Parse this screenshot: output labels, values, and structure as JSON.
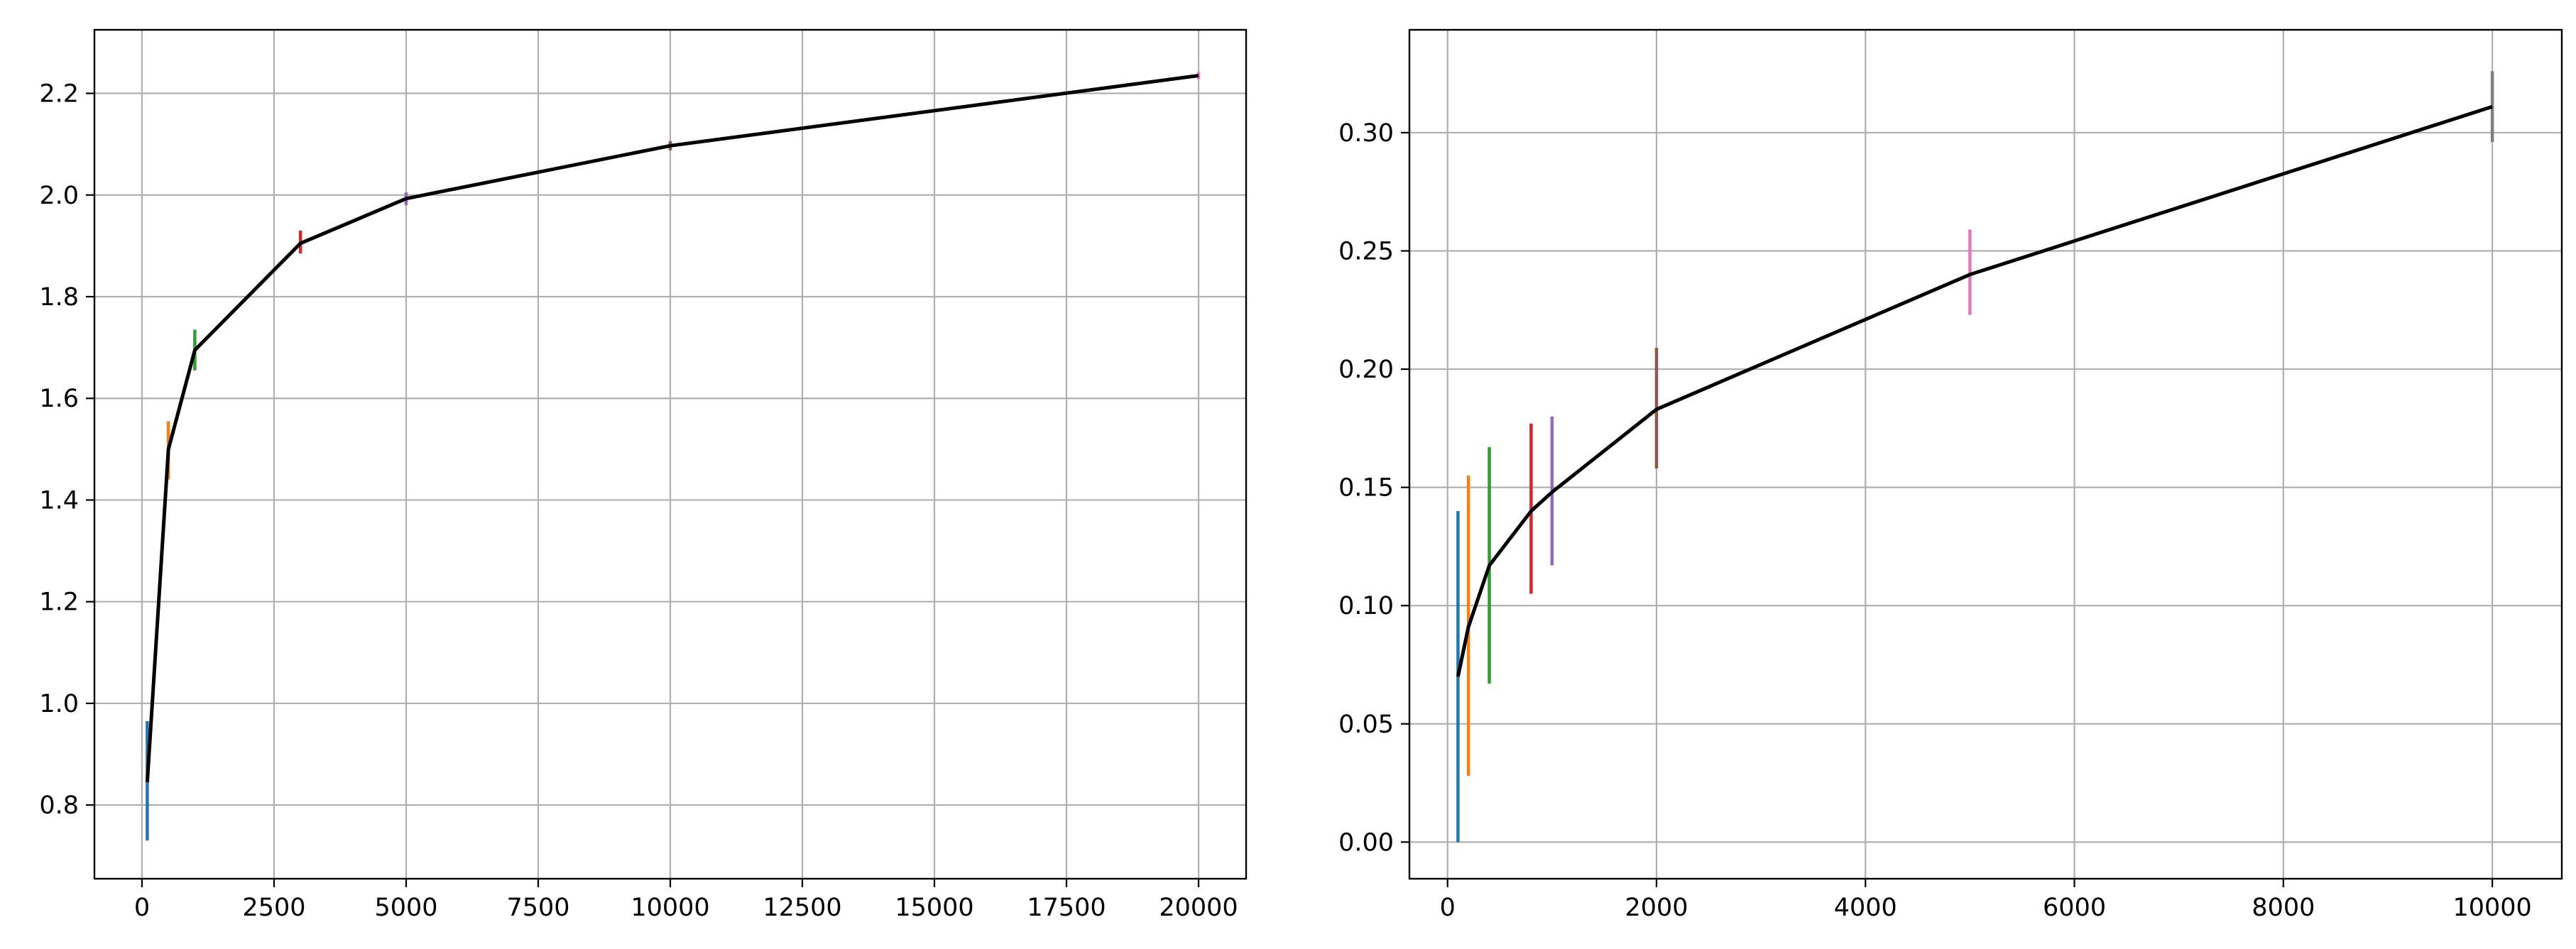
{
  "chart_data": [
    {
      "type": "line",
      "xlim": [
        -900,
        20900
      ],
      "ylim": [
        0.655,
        2.325
      ],
      "xticks": [
        0,
        2500,
        5000,
        7500,
        10000,
        12500,
        15000,
        17500,
        20000
      ],
      "xtick_labels": [
        "0",
        "2500",
        "5000",
        "7500",
        "10000",
        "12500",
        "15000",
        "17500",
        "20000"
      ],
      "yticks": [
        0.8,
        1.0,
        1.2,
        1.4,
        1.6,
        1.8,
        2.0,
        2.2
      ],
      "ytick_labels": [
        "0.8",
        "1.0",
        "1.2",
        "1.4",
        "1.6",
        "1.8",
        "2.0",
        "2.2"
      ],
      "grid": true,
      "mean_line": {
        "color": "#000000",
        "x": [
          100,
          500,
          1000,
          3000,
          5000,
          10000,
          20000
        ],
        "y": [
          0.845,
          1.5,
          1.695,
          1.905,
          1.993,
          2.097,
          2.235
        ]
      },
      "error_bars": [
        {
          "x": 100,
          "low": 0.73,
          "high": 0.965,
          "color": "#1f77b4"
        },
        {
          "x": 500,
          "low": 1.44,
          "high": 1.555,
          "color": "#ff7f0e"
        },
        {
          "x": 1000,
          "low": 1.655,
          "high": 1.735,
          "color": "#2ca02c"
        },
        {
          "x": 3000,
          "low": 1.885,
          "high": 1.93,
          "color": "#d62728"
        },
        {
          "x": 5000,
          "low": 1.98,
          "high": 2.005,
          "color": "#9467bd"
        },
        {
          "x": 10000,
          "low": 2.088,
          "high": 2.106,
          "color": "#8c564b"
        },
        {
          "x": 20000,
          "low": 2.228,
          "high": 2.242,
          "color": "#e377c2"
        }
      ]
    },
    {
      "type": "line",
      "xlim": [
        -365,
        10665
      ],
      "ylim": [
        -0.0155,
        0.3435
      ],
      "xticks": [
        0,
        2000,
        4000,
        6000,
        8000,
        10000
      ],
      "xtick_labels": [
        "0",
        "2000",
        "4000",
        "6000",
        "8000",
        "10000"
      ],
      "yticks": [
        0.0,
        0.05,
        0.1,
        0.15,
        0.2,
        0.25,
        0.3
      ],
      "ytick_labels": [
        "0.00",
        "0.05",
        "0.10",
        "0.15",
        "0.20",
        "0.25",
        "0.30"
      ],
      "grid": true,
      "mean_line": {
        "color": "#000000",
        "x": [
          100,
          200,
          400,
          800,
          1000,
          2000,
          5000,
          10000
        ],
        "y": [
          0.07,
          0.091,
          0.117,
          0.14,
          0.148,
          0.183,
          0.24,
          0.311
        ]
      },
      "error_bars": [
        {
          "x": 100,
          "low": 0.0,
          "high": 0.14,
          "color": "#1f77b4"
        },
        {
          "x": 200,
          "low": 0.028,
          "high": 0.155,
          "color": "#ff7f0e"
        },
        {
          "x": 400,
          "low": 0.067,
          "high": 0.167,
          "color": "#2ca02c"
        },
        {
          "x": 800,
          "low": 0.105,
          "high": 0.177,
          "color": "#d62728"
        },
        {
          "x": 1000,
          "low": 0.117,
          "high": 0.18,
          "color": "#9467bd"
        },
        {
          "x": 2000,
          "low": 0.158,
          "high": 0.209,
          "color": "#8c564b"
        },
        {
          "x": 5000,
          "low": 0.223,
          "high": 0.259,
          "color": "#e377c2"
        },
        {
          "x": 10000,
          "low": 0.296,
          "high": 0.326,
          "color": "#7f7f7f"
        }
      ]
    }
  ]
}
